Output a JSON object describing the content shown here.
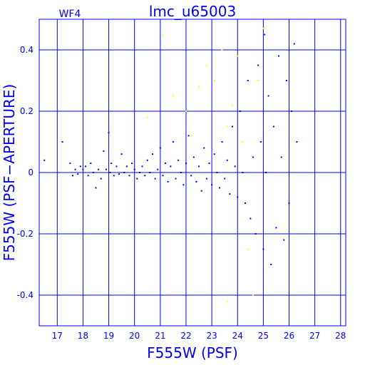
{
  "chart_data": {
    "type": "scatter",
    "title": "lmc_u65003",
    "chip_label": "WF4",
    "xlabel": "F555W (PSF)",
    "ylabel": "F555W (PSF−APERTURE)",
    "xlim": [
      16.3,
      28.2
    ],
    "ylim": [
      -0.5,
      0.5
    ],
    "grid": true,
    "x_ticks": [
      {
        "value": 17,
        "label": "17"
      },
      {
        "value": 18,
        "label": "18"
      },
      {
        "value": 19,
        "label": "19"
      },
      {
        "value": 20,
        "label": "20"
      },
      {
        "value": 21,
        "label": "21"
      },
      {
        "value": 22,
        "label": "22"
      },
      {
        "value": 23,
        "label": "23"
      },
      {
        "value": 24,
        "label": "24"
      },
      {
        "value": 25,
        "label": "25"
      },
      {
        "value": 26,
        "label": "26"
      },
      {
        "value": 27,
        "label": "27"
      },
      {
        "value": 28,
        "label": "28"
      }
    ],
    "y_ticks": [
      {
        "value": 0.4,
        "label": "0.4"
      },
      {
        "value": 0.2,
        "label": "0.2"
      },
      {
        "value": 0,
        "label": "0"
      },
      {
        "value": -0.2,
        "label": "-0.2"
      },
      {
        "value": -0.4,
        "label": "-0.4"
      }
    ],
    "series": [
      {
        "color": "#0000ff",
        "points": [
          [
            16.5,
            0.04
          ],
          [
            17.2,
            0.1
          ],
          [
            17.5,
            0.03
          ],
          [
            17.6,
            -0.01
          ],
          [
            17.7,
            0.01
          ],
          [
            17.8,
            -0.005
          ],
          [
            17.9,
            0.02
          ],
          [
            18.0,
            0.01
          ],
          [
            18.1,
            0.02
          ],
          [
            18.2,
            -0.01
          ],
          [
            18.3,
            0.03
          ],
          [
            18.4,
            0.0
          ],
          [
            18.5,
            -0.05
          ],
          [
            18.6,
            0.01
          ],
          [
            18.7,
            -0.02
          ],
          [
            18.8,
            0.07
          ],
          [
            18.9,
            0.01
          ],
          [
            19.0,
            0.13
          ],
          [
            19.05,
            0.0
          ],
          [
            19.1,
            0.03
          ],
          [
            19.2,
            -0.01
          ],
          [
            19.3,
            0.02
          ],
          [
            19.4,
            -0.005
          ],
          [
            19.5,
            0.06
          ],
          [
            19.6,
            0.0
          ],
          [
            19.7,
            0.02
          ],
          [
            19.8,
            -0.01
          ],
          [
            19.9,
            0.03
          ],
          [
            20.0,
            0.01
          ],
          [
            20.1,
            -0.02
          ],
          [
            20.2,
            0.0
          ],
          [
            20.3,
            0.02
          ],
          [
            20.4,
            -0.01
          ],
          [
            20.5,
            0.04
          ],
          [
            20.6,
            0.0
          ],
          [
            20.7,
            0.06
          ],
          [
            20.8,
            -0.02
          ],
          [
            20.9,
            0.01
          ],
          [
            21.0,
            0.08
          ],
          [
            21.1,
            -0.01
          ],
          [
            21.2,
            0.03
          ],
          [
            21.3,
            -0.03
          ],
          [
            21.4,
            0.02
          ],
          [
            21.5,
            0.1
          ],
          [
            21.6,
            -0.02
          ],
          [
            21.7,
            0.04
          ],
          [
            21.8,
            0.0
          ],
          [
            21.9,
            -0.04
          ],
          [
            22.0,
            0.03
          ],
          [
            22.1,
            0.12
          ],
          [
            22.2,
            -0.01
          ],
          [
            22.3,
            0.05
          ],
          [
            22.4,
            -0.03
          ],
          [
            22.5,
            0.02
          ],
          [
            22.6,
            -0.06
          ],
          [
            22.7,
            0.08
          ],
          [
            22.8,
            -0.02
          ],
          [
            22.9,
            0.03
          ],
          [
            23.0,
            -0.04
          ],
          [
            23.1,
            0.06
          ],
          [
            23.2,
            0.0
          ],
          [
            23.3,
            -0.05
          ],
          [
            23.4,
            0.1
          ],
          [
            23.5,
            -0.02
          ],
          [
            23.6,
            0.04
          ],
          [
            23.7,
            -0.07
          ],
          [
            23.8,
            0.15
          ],
          [
            23.9,
            0.02
          ],
          [
            24.0,
            -0.08
          ],
          [
            24.1,
            0.2
          ],
          [
            24.2,
            0.0
          ],
          [
            24.3,
            -0.1
          ],
          [
            24.4,
            0.3
          ],
          [
            24.5,
            -0.15
          ],
          [
            24.6,
            0.05
          ],
          [
            24.7,
            -0.2
          ],
          [
            24.8,
            0.35
          ],
          [
            24.9,
            0.1
          ],
          [
            25.0,
            -0.25
          ],
          [
            25.05,
            0.45
          ],
          [
            25.1,
            0.0
          ],
          [
            25.2,
            0.25
          ],
          [
            25.3,
            -0.3
          ],
          [
            25.4,
            0.15
          ],
          [
            25.5,
            -0.18
          ],
          [
            25.6,
            0.38
          ],
          [
            25.7,
            0.05
          ],
          [
            25.8,
            -0.22
          ],
          [
            25.9,
            0.3
          ],
          [
            26.0,
            -0.1
          ],
          [
            26.1,
            0.2
          ],
          [
            26.2,
            0.42
          ],
          [
            26.3,
            0.1
          ]
        ]
      },
      {
        "color": "#ffff00",
        "points": [
          [
            21.1,
            0.45
          ],
          [
            21.5,
            0.25
          ],
          [
            22.0,
            0.2
          ],
          [
            22.5,
            0.28
          ],
          [
            22.8,
            0.35
          ],
          [
            23.1,
            0.3
          ],
          [
            23.4,
            0.4
          ],
          [
            23.6,
            0.15
          ],
          [
            23.8,
            0.22
          ],
          [
            24.0,
            0.38
          ],
          [
            24.2,
            0.1
          ],
          [
            24.4,
            -0.25
          ],
          [
            24.6,
            -0.4
          ],
          [
            25.0,
            0.47
          ],
          [
            23.6,
            -0.42
          ],
          [
            20.5,
            0.18
          ],
          [
            22.2,
            0.12
          ],
          [
            24.8,
            0.3
          ]
        ]
      }
    ]
  }
}
